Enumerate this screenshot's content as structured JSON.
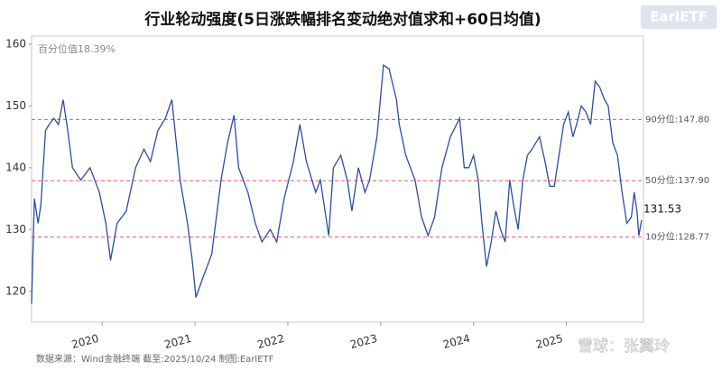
{
  "chart_data": {
    "type": "line",
    "title": "行业轮动强度(5日涨跌幅排名变动绝对值求和+60日均值)",
    "annotation": "百分位值18.39%",
    "color": "#2b4ea0",
    "x": [
      2019.24,
      2019.27,
      2019.31,
      2019.34,
      2019.39,
      2019.43,
      2019.48,
      2019.53,
      2019.58,
      2019.63,
      2019.68,
      2019.77,
      2019.87,
      2019.97,
      2020.04,
      2020.09,
      2020.16,
      2020.26,
      2020.36,
      2020.45,
      2020.52,
      2020.6,
      2020.68,
      2020.75,
      2020.84,
      2020.92,
      2020.97,
      2021.01,
      2021.08,
      2021.18,
      2021.28,
      2021.35,
      2021.42,
      2021.47,
      2021.57,
      2021.65,
      2021.72,
      2021.81,
      2021.88,
      2021.96,
      2022.06,
      2022.13,
      2022.2,
      2022.3,
      2022.35,
      2022.44,
      2022.49,
      2022.57,
      2022.64,
      2022.69,
      2022.76,
      2022.83,
      2022.88,
      2022.96,
      2023.03,
      2023.09,
      2023.17,
      2023.2,
      2023.27,
      2023.37,
      2023.44,
      2023.51,
      2023.58,
      2023.66,
      2023.75,
      2023.85,
      2023.9,
      2023.95,
      2024.0,
      2024.05,
      2024.09,
      2024.14,
      2024.19,
      2024.24,
      2024.29,
      2024.34,
      2024.39,
      2024.43,
      2024.48,
      2024.53,
      2024.58,
      2024.63,
      2024.71,
      2024.77,
      2024.82,
      2024.87,
      2024.97,
      2025.02,
      2025.07,
      2025.11,
      2025.16,
      2025.21,
      2025.26,
      2025.31,
      2025.36,
      2025.41,
      2025.45,
      2025.5,
      2025.55,
      2025.6,
      2025.65,
      2025.7,
      2025.73,
      2025.76,
      2025.78,
      2025.81
    ],
    "values": [
      118,
      135,
      131,
      134,
      146,
      147,
      148,
      147,
      151,
      146,
      140,
      138,
      140,
      136,
      131,
      125,
      131,
      133,
      140,
      143,
      141,
      146,
      148,
      151,
      138,
      131,
      125,
      119,
      122,
      126,
      138,
      144,
      148.5,
      140,
      136,
      131,
      128,
      130,
      128,
      135,
      141,
      147,
      141,
      136,
      138,
      129,
      140,
      142,
      138,
      133,
      140,
      136,
      138,
      145,
      156.6,
      156,
      151,
      147,
      142,
      138,
      132,
      129,
      132,
      140,
      145,
      148,
      140,
      140,
      142,
      138,
      131,
      124,
      128,
      133,
      130,
      128,
      138,
      134,
      130,
      138,
      142,
      143,
      145,
      141,
      137,
      137,
      147,
      149,
      145,
      147,
      150,
      149,
      147,
      154,
      153,
      151,
      150,
      144,
      142,
      136,
      131,
      132,
      136,
      133,
      129,
      131.53
    ],
    "xlim": [
      2019.24,
      2025.83
    ],
    "xticks": [
      2020,
      2021,
      2022,
      2023,
      2024,
      2025
    ],
    "ylim": [
      115,
      161.3
    ],
    "yticks": [
      120,
      130,
      140,
      150,
      160
    ],
    "reference_lines": [
      {
        "value": 147.8,
        "label": "90分位:147.80"
      },
      {
        "value": 137.9,
        "label": "50分位:137.90"
      },
      {
        "value": 128.77,
        "label": "10分位:128.77"
      }
    ],
    "reference_color": "#e8585a"
  },
  "logo": "EarlETF",
  "source": "数据来源：Wind金融终端 截至:2025/10/24 制图:EarlETF",
  "watermark": "雪球：张翼玲"
}
